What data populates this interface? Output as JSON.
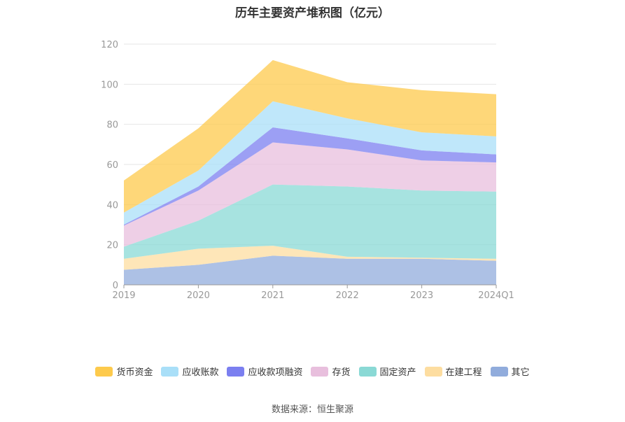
{
  "chart_data": {
    "type": "area",
    "title": "历年主要资产堆积图（亿元）",
    "xlabel": "",
    "ylabel": "",
    "categories": [
      "2019",
      "2020",
      "2021",
      "2022",
      "2023",
      "2024Q1"
    ],
    "ylim": [
      0,
      120
    ],
    "yticks": [
      "0",
      "20",
      "40",
      "60",
      "80",
      "100",
      "120"
    ],
    "grid": true,
    "legend_position": "bottom",
    "series": [
      {
        "name": "其它",
        "color": "#91acdc",
        "values": [
          7.5,
          10,
          14.5,
          13,
          13,
          12
        ]
      },
      {
        "name": "在建工程",
        "color": "#fddda0",
        "values": [
          5.5,
          8,
          5,
          1,
          0.5,
          1
        ]
      },
      {
        "name": "固定资产",
        "color": "#8ad9d5",
        "values": [
          6,
          14,
          30.5,
          35,
          33.5,
          33.5
        ]
      },
      {
        "name": "存货",
        "color": "#e8bfdd",
        "values": [
          10.5,
          15,
          21,
          18.5,
          15,
          14.5
        ]
      },
      {
        "name": "应收款项融资",
        "color": "#7b7ff0",
        "values": [
          0.5,
          2,
          7.5,
          5.5,
          5,
          4
        ]
      },
      {
        "name": "应收账款",
        "color": "#a9dff8",
        "values": [
          6,
          8,
          13,
          10,
          9,
          9
        ]
      },
      {
        "name": "货币资金",
        "color": "#fdca4c",
        "values": [
          16,
          21,
          20.5,
          18,
          21,
          21
        ]
      }
    ]
  },
  "legend_order": [
    "货币资金",
    "应收账款",
    "应收款项融资",
    "存货",
    "固定资产",
    "在建工程",
    "其它"
  ],
  "source": "数据来源：恒生聚源"
}
